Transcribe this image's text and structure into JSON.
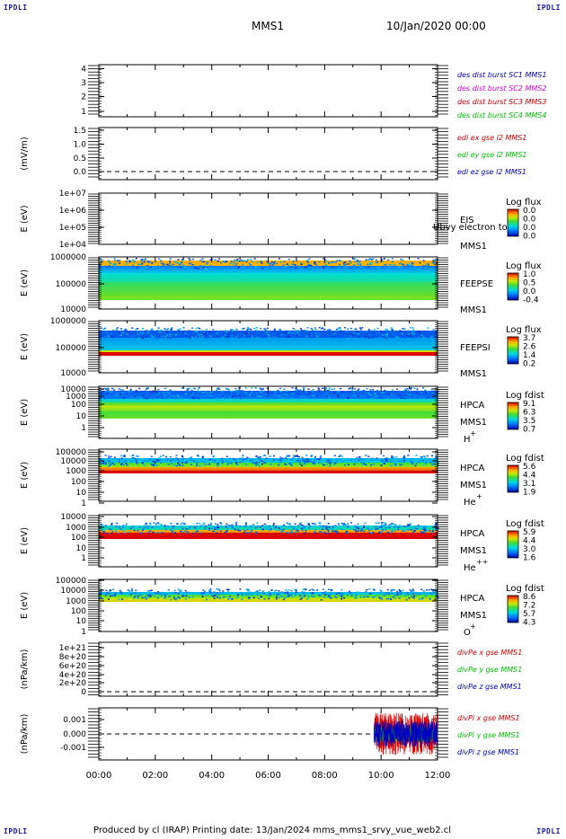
{
  "corners": {
    "tl": "IPDLI",
    "tr": "IPDLI",
    "bl": "IPDLI",
    "br": "IPDLI"
  },
  "header": {
    "mission": "MMS1",
    "date": "10/Jan/2020 00:00"
  },
  "footer": {
    "text": "Produced by cl (IRAP)   Printing date: 13/Jan/2024   mms_mms1_srvy_vue_web2.cl"
  },
  "colors": {
    "red": "#d40000",
    "green": "#00c000",
    "blue": "#0000c0",
    "magenta": "#d000d0",
    "axis": "#000000"
  },
  "chart_data": [
    {
      "type": "line",
      "ylabel": "",
      "y_ticks": [
        "4",
        "3",
        "2",
        "1"
      ],
      "ylim": [
        0.7,
        4.3
      ],
      "legend": [
        {
          "text": "des dist burst SC1 MMS1",
          "color": "#0000c0"
        },
        {
          "text": "des dist burst SC2 MMS2",
          "color": "#d000d0"
        },
        {
          "text": "des dist burst SC3 MMS3",
          "color": "#d40000"
        },
        {
          "text": "des dist burst SC4 MMS4",
          "color": "#00c000"
        }
      ],
      "series": []
    },
    {
      "type": "line",
      "ylabel": "(mV/m)",
      "y_ticks": [
        "1.5",
        "1.0",
        "0.5",
        "0.0"
      ],
      "ylim": [
        -0.2,
        1.6
      ],
      "zero_line": true,
      "legend": [
        {
          "text": "edi ex gse l2 MMS1",
          "color": "#d40000"
        },
        {
          "text": "edi ey gse l2 MMS1",
          "color": "#00c000"
        },
        {
          "text": "edi ez gse l2 MMS1",
          "color": "#0000c0"
        }
      ],
      "series": []
    },
    {
      "type": "heatmap",
      "ylabel": "E (eV)",
      "y_ticks": [
        "1e+07",
        "1e+06",
        "1e+05",
        "1e+04"
      ],
      "log_y": true,
      "instrument": "EIS",
      "spacecraft": "MMS1",
      "overlay": "Ubvy electron to",
      "colorbar": {
        "title": "Log flux",
        "ticks": [
          "0.0",
          "0.0",
          "0.0",
          "0.0"
        ]
      }
    },
    {
      "type": "heatmap",
      "ylabel": "E (eV)",
      "y_ticks": [
        "1000000",
        "100000",
        "10000"
      ],
      "log_y": true,
      "instrument": "FEEPSE",
      "spacecraft": "MMS1",
      "colorbar": {
        "title": "Log flux",
        "ticks": [
          "1.0",
          "0.5",
          "0.0",
          "-0.4"
        ]
      }
    },
    {
      "type": "heatmap",
      "ylabel": "E (eV)",
      "y_ticks": [
        "1000000",
        "100000",
        "10000"
      ],
      "log_y": true,
      "instrument": "FEEPSI",
      "spacecraft": "MMS1",
      "colorbar": {
        "title": "Log flux",
        "ticks": [
          "3.7",
          "2.6",
          "1.4",
          "0.2"
        ]
      }
    },
    {
      "type": "heatmap",
      "ylabel": "E (eV)",
      "y_ticks": [
        "10000",
        "1000",
        "100",
        "10",
        "1"
      ],
      "log_y": true,
      "instrument": "HPCA",
      "spacecraft": "MMS1",
      "species": "H",
      "charge": "+",
      "colorbar": {
        "title": "Log fdist",
        "ticks": [
          "9.1",
          "6.3",
          "3.5",
          "0.7"
        ]
      }
    },
    {
      "type": "heatmap",
      "ylabel": "E (eV)",
      "y_ticks": [
        "100000",
        "10000",
        "1000",
        "100",
        "10",
        "1"
      ],
      "log_y": true,
      "instrument": "HPCA",
      "spacecraft": "MMS1",
      "species": "He",
      "charge": "+",
      "colorbar": {
        "title": "Log fdist",
        "ticks": [
          "5.6",
          "4.4",
          "3.1",
          "1.9"
        ]
      }
    },
    {
      "type": "heatmap",
      "ylabel": "E (eV)",
      "y_ticks": [
        "10000",
        "1000",
        "100",
        "10",
        "1"
      ],
      "log_y": true,
      "instrument": "HPCA",
      "spacecraft": "MMS1",
      "species": "He",
      "charge": "++",
      "colorbar": {
        "title": "Log fdist",
        "ticks": [
          "5.9",
          "4.4",
          "3.0",
          "1.6"
        ]
      }
    },
    {
      "type": "heatmap",
      "ylabel": "E (eV)",
      "y_ticks": [
        "100000",
        "10000",
        "1000",
        "100",
        "10",
        "1"
      ],
      "log_y": true,
      "instrument": "HPCA",
      "spacecraft": "MMS1",
      "species": "O",
      "charge": "+",
      "colorbar": {
        "title": "Log fdist",
        "ticks": [
          "8.6",
          "7.2",
          "5.7",
          "4.3"
        ]
      }
    },
    {
      "type": "line",
      "ylabel": "(nPa/km)",
      "y_ticks": [
        "1e+21",
        "8e+20",
        "6e+20",
        "4e+20",
        "2e+20",
        "0"
      ],
      "ylim": [
        -5e+19,
        1.05e+21
      ],
      "zero_line": true,
      "legend": [
        {
          "text": "divPe x gse MMS1",
          "color": "#d40000"
        },
        {
          "text": "divPe y gse MMS1",
          "color": "#00c000"
        },
        {
          "text": "divPe z gse MMS1",
          "color": "#0000c0"
        }
      ],
      "series": []
    },
    {
      "type": "line",
      "ylabel": "(nPa/km)",
      "y_ticks": [
        "0.001",
        "0.000",
        "-0.001"
      ],
      "ylim": [
        -0.0016,
        0.0016
      ],
      "zero_line": true,
      "legend": [
        {
          "text": "divPi x gse MMS1",
          "color": "#d40000"
        },
        {
          "text": "divPi y gse MMS1",
          "color": "#00c000"
        },
        {
          "text": "divPi z gse MMS1",
          "color": "#0000c0"
        }
      ],
      "series": [
        {
          "name": "divPi x gse MMS1",
          "color": "#d40000",
          "x_start": "09:45",
          "x_end": "12:00",
          "approx_range": [
            -0.0013,
            0.0013
          ]
        },
        {
          "name": "divPi y gse MMS1",
          "color": "#00c000",
          "x_start": "09:45",
          "x_end": "12:00",
          "approx_range": [
            -0.0005,
            0.0005
          ]
        },
        {
          "name": "divPi z gse MMS1",
          "color": "#0000c0",
          "x_start": "09:45",
          "x_end": "12:00",
          "approx_range": [
            -0.0008,
            0.0008
          ]
        }
      ]
    }
  ],
  "x_axis": {
    "ticks": [
      "00:00",
      "02:00",
      "04:00",
      "06:00",
      "08:00",
      "10:00",
      "12:00"
    ],
    "range": [
      "00:00",
      "12:00"
    ]
  }
}
